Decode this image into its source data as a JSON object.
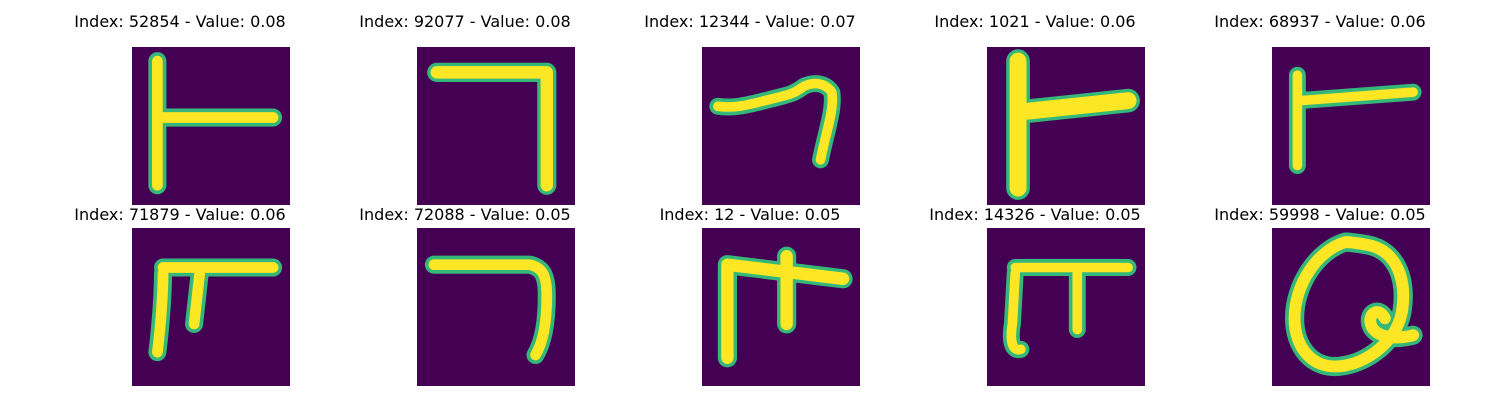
{
  "colors": {
    "background": "#440154",
    "stroke_core": "#fde725",
    "stroke_edge": "#35b779"
  },
  "panels": [
    {
      "title": "Index: 52854 - Value: 0.08",
      "glyph": "T-shape rotated (vertical bar with horizontal arm to right)"
    },
    {
      "title": "Index: 92077 - Value: 0.08",
      "glyph": "reversed L (top bar, right vertical)"
    },
    {
      "title": "Index: 12344 - Value: 0.07",
      "glyph": "hook stroke"
    },
    {
      "title": "Index: 1021 - Value: 0.06",
      "glyph": "T-shape rotated thick"
    },
    {
      "title": "Index: 68937 - Value: 0.06",
      "glyph": "T-shape rotated thin"
    },
    {
      "title": "Index: 71879 - Value: 0.06",
      "glyph": "pi-like shape"
    },
    {
      "title": "Index: 72088 - Value: 0.05",
      "glyph": "reversed L curved"
    },
    {
      "title": "Index: 12 - Value: 0.05",
      "glyph": "pi-like shape thick"
    },
    {
      "title": "Index: 14326 - Value: 0.05",
      "glyph": "pi-like shape"
    },
    {
      "title": "Index: 59998 - Value: 0.05",
      "glyph": "loop shape"
    }
  ]
}
